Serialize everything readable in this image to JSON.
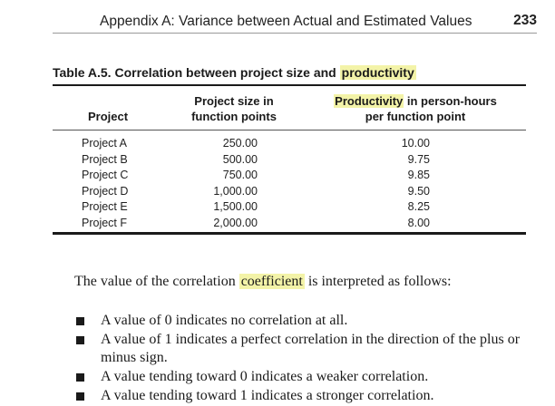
{
  "header": {
    "title": "Appendix A: Variance between Actual and Estimated Values",
    "page_number": "233"
  },
  "table": {
    "caption_prefix": "Table A.5.  Correlation between project size and ",
    "caption_highlight": "productivity",
    "col1_header": "Project",
    "col2_header_line1": "Project size in",
    "col2_header_line2": "function points",
    "col3_header_line1_hl": "Productivity",
    "col3_header_line1_rest": " in person-hours",
    "col3_header_line2": "per function point",
    "rows": [
      {
        "project": "Project A",
        "size": "250.00",
        "productivity": "10.00"
      },
      {
        "project": "Project B",
        "size": "500.00",
        "productivity": "9.75"
      },
      {
        "project": "Project C",
        "size": "750.00",
        "productivity": "9.85"
      },
      {
        "project": "Project D",
        "size": "1,000.00",
        "productivity": "9.50"
      },
      {
        "project": "Project E",
        "size": "1,500.00",
        "productivity": "8.25"
      },
      {
        "project": "Project F",
        "size": "2,000.00",
        "productivity": "8.00"
      }
    ]
  },
  "body": {
    "para_prefix": "The value of the correlation ",
    "para_highlight": "coefficient",
    "para_suffix": " is interpreted as follows:",
    "bullets": [
      "A value of 0 indicates no correlation at all.",
      "A value of 1 indicates a perfect correlation in the direction of the plus or minus sign.",
      "A value tending toward 0 indicates a weaker correlation.",
      "A value tending toward 1 indicates a stronger correlation."
    ]
  },
  "colors": {
    "highlight": "#f3f3a8",
    "text": "#1a1a1a"
  }
}
